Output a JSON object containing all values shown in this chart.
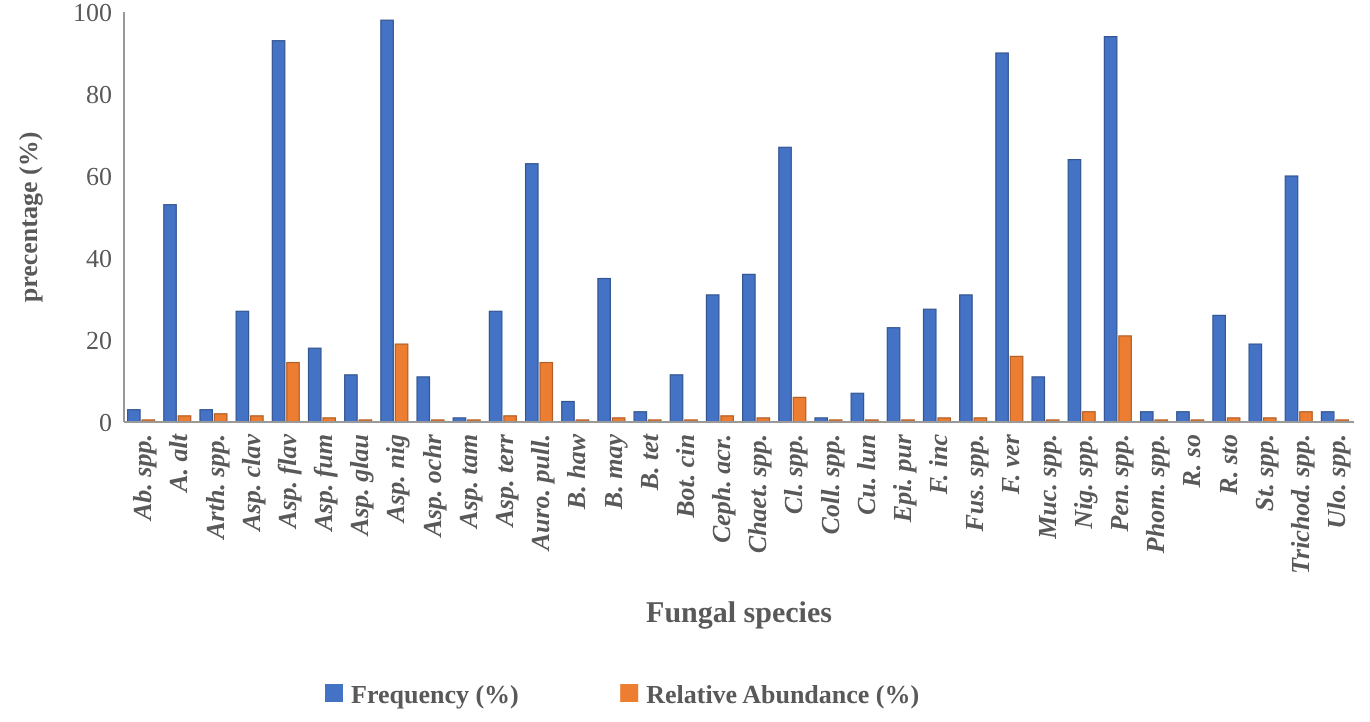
{
  "chart_data": {
    "type": "bar",
    "xlabel": "Fungal species",
    "ylabel": "precentage (%)",
    "categories": [
      "Ab. spp.",
      "A. alt",
      "Arth. spp.",
      "Asp. clav",
      "Asp. flav",
      "Asp. fum",
      "Asp. glau",
      "Asp. nig",
      "Asp. ochr",
      "Asp. tam",
      "Asp. terr",
      "Auro. pull.",
      "B. haw",
      "B. may",
      "B. tet",
      "Bot. cin",
      "Ceph. acr.",
      "Chaet. spp.",
      "Cl. spp.",
      "Coll. spp.",
      "Cu. lun",
      "Epi. pur",
      "F. inc",
      "Fus. spp.",
      "F. ver",
      "Muc. spp.",
      "Nig. spp.",
      "Pen. spp.",
      "Phom. spp.",
      "R. so",
      "R. sto",
      "St. spp.",
      "Trichod. spp.",
      "Ulo. spp."
    ],
    "series": [
      {
        "name": "Frequency (%)",
        "color": "#4472c4",
        "values": [
          3,
          53,
          3,
          27,
          93,
          18,
          11.5,
          98,
          11,
          1,
          27,
          63,
          5,
          35,
          2.5,
          11.5,
          31,
          36,
          67,
          1,
          7,
          23,
          27.5,
          31,
          90,
          11,
          64,
          94,
          2.5,
          2.5,
          26,
          19,
          60,
          2.5
        ]
      },
      {
        "name": "Relative Abundance (%)",
        "color": "#ed7d31",
        "values": [
          0.5,
          1.5,
          2,
          1.5,
          14.5,
          1,
          0.5,
          19,
          0.5,
          0.5,
          1.5,
          14.5,
          0.5,
          1,
          0.5,
          0.5,
          1.5,
          1,
          6,
          0.5,
          0.5,
          0.5,
          1,
          1,
          16,
          0.5,
          2.5,
          21,
          0.5,
          0.5,
          1,
          1,
          2.5,
          0.5
        ]
      }
    ],
    "ylim": [
      0,
      100
    ],
    "yticks": [
      0,
      20,
      40,
      60,
      80,
      100
    ],
    "grid": false,
    "legend": "bottom"
  }
}
